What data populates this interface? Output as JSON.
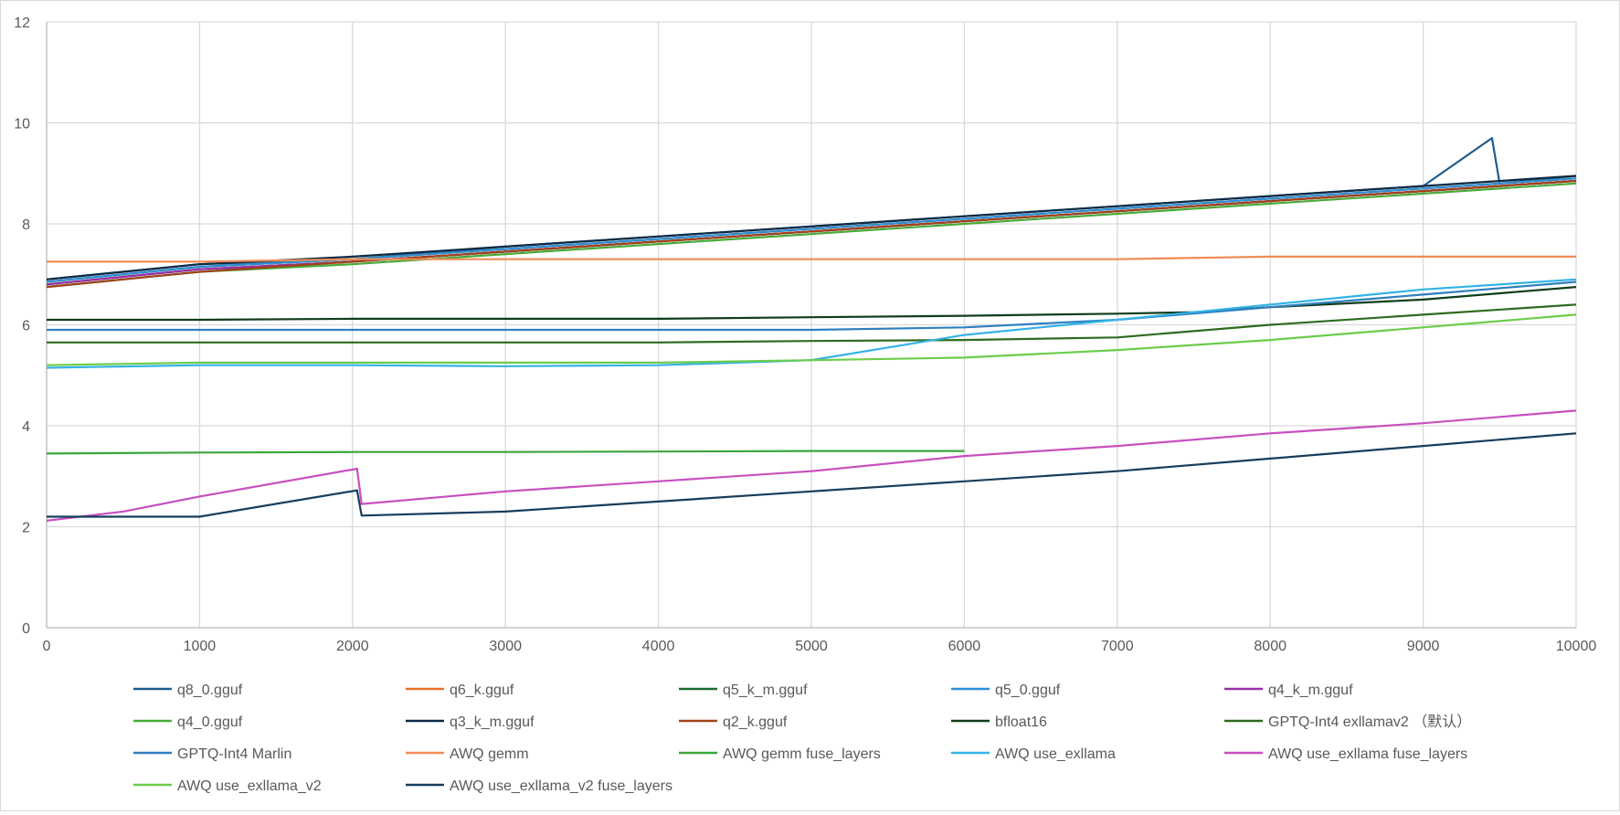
{
  "chart_data": {
    "type": "line",
    "title": "",
    "xlabel": "",
    "ylabel": "",
    "xlim": [
      0,
      10000
    ],
    "ylim": [
      0,
      12
    ],
    "x_ticks": [
      0,
      1000,
      2000,
      3000,
      4000,
      5000,
      6000,
      7000,
      8000,
      9000,
      10000
    ],
    "y_ticks": [
      0,
      2,
      4,
      6,
      8,
      10,
      12
    ],
    "grid": true,
    "legend_position": "bottom",
    "series": [
      {
        "name": "q8_0.gguf",
        "color": "#1f5c8c",
        "values": [
          [
            0,
            6.9
          ],
          [
            500,
            7.05
          ],
          [
            1000,
            7.2
          ],
          [
            2000,
            7.3
          ],
          [
            3000,
            7.55
          ],
          [
            4000,
            7.75
          ],
          [
            5000,
            7.95
          ],
          [
            6000,
            8.15
          ],
          [
            7000,
            8.35
          ],
          [
            8000,
            8.55
          ],
          [
            9000,
            8.75
          ],
          [
            9450,
            9.7
          ],
          [
            9500,
            8.8
          ],
          [
            10000,
            8.95
          ]
        ]
      },
      {
        "name": "q6_k.gguf",
        "color": "#e8702a",
        "values": [
          [
            0,
            6.85
          ],
          [
            1000,
            7.15
          ],
          [
            2000,
            7.3
          ],
          [
            3000,
            7.5
          ],
          [
            4000,
            7.7
          ],
          [
            5000,
            7.9
          ],
          [
            6000,
            8.1
          ],
          [
            7000,
            8.3
          ],
          [
            8000,
            8.5
          ],
          [
            9000,
            8.7
          ],
          [
            10000,
            8.9
          ]
        ]
      },
      {
        "name": "q5_k_m.gguf",
        "color": "#1a6b2e",
        "values": [
          [
            0,
            6.8
          ],
          [
            1000,
            7.1
          ],
          [
            2000,
            7.25
          ],
          [
            3000,
            7.45
          ],
          [
            4000,
            7.65
          ],
          [
            5000,
            7.85
          ],
          [
            6000,
            8.05
          ],
          [
            7000,
            8.25
          ],
          [
            8000,
            8.45
          ],
          [
            9000,
            8.65
          ],
          [
            10000,
            8.85
          ]
        ]
      },
      {
        "name": "q5_0.gguf",
        "color": "#2b8fd6",
        "values": [
          [
            0,
            6.85
          ],
          [
            1000,
            7.15
          ],
          [
            2000,
            7.3
          ],
          [
            3000,
            7.5
          ],
          [
            4000,
            7.7
          ],
          [
            5000,
            7.9
          ],
          [
            6000,
            8.1
          ],
          [
            7000,
            8.3
          ],
          [
            8000,
            8.5
          ],
          [
            9000,
            8.7
          ],
          [
            10000,
            8.9
          ]
        ]
      },
      {
        "name": "q4_k_m.gguf",
        "color": "#9b2fa6",
        "values": [
          [
            0,
            6.8
          ],
          [
            1000,
            7.1
          ],
          [
            2000,
            7.25
          ],
          [
            3000,
            7.45
          ],
          [
            4000,
            7.65
          ],
          [
            5000,
            7.85
          ],
          [
            6000,
            8.05
          ],
          [
            7000,
            8.25
          ],
          [
            8000,
            8.45
          ],
          [
            9000,
            8.65
          ],
          [
            10000,
            8.85
          ]
        ]
      },
      {
        "name": "q4_0.gguf",
        "color": "#4aaa3a",
        "values": [
          [
            0,
            6.75
          ],
          [
            1000,
            7.05
          ],
          [
            2000,
            7.2
          ],
          [
            3000,
            7.4
          ],
          [
            4000,
            7.6
          ],
          [
            5000,
            7.8
          ],
          [
            6000,
            8.0
          ],
          [
            7000,
            8.2
          ],
          [
            8000,
            8.4
          ],
          [
            9000,
            8.6
          ],
          [
            10000,
            8.8
          ]
        ]
      },
      {
        "name": "q3_k_m.gguf",
        "color": "#0d2a45",
        "values": [
          [
            0,
            6.9
          ],
          [
            1000,
            7.2
          ],
          [
            2000,
            7.35
          ],
          [
            3000,
            7.55
          ],
          [
            4000,
            7.75
          ],
          [
            5000,
            7.95
          ],
          [
            6000,
            8.15
          ],
          [
            7000,
            8.35
          ],
          [
            8000,
            8.55
          ],
          [
            9000,
            8.75
          ],
          [
            10000,
            8.95
          ]
        ]
      },
      {
        "name": "q2_k.gguf",
        "color": "#a0421a",
        "values": [
          [
            0,
            6.75
          ],
          [
            1000,
            7.05
          ],
          [
            2000,
            7.25
          ],
          [
            3000,
            7.45
          ],
          [
            4000,
            7.65
          ],
          [
            5000,
            7.85
          ],
          [
            6000,
            8.05
          ],
          [
            7000,
            8.25
          ],
          [
            8000,
            8.45
          ],
          [
            9000,
            8.65
          ],
          [
            10000,
            8.85
          ]
        ]
      },
      {
        "name": "bfloat16",
        "color": "#0f3d1a",
        "values": [
          [
            0,
            6.1
          ],
          [
            1000,
            6.1
          ],
          [
            2000,
            6.12
          ],
          [
            3000,
            6.12
          ],
          [
            4000,
            6.12
          ],
          [
            5000,
            6.15
          ],
          [
            6000,
            6.18
          ],
          [
            7000,
            6.22
          ],
          [
            7500,
            6.25
          ],
          [
            8000,
            6.35
          ],
          [
            9000,
            6.5
          ],
          [
            10000,
            6.75
          ]
        ]
      },
      {
        "name": "GPTQ-Int4 exllamav2 （默认）",
        "color": "#2e6b1f",
        "values": [
          [
            0,
            5.65
          ],
          [
            1000,
            5.65
          ],
          [
            2000,
            5.65
          ],
          [
            3000,
            5.65
          ],
          [
            4000,
            5.65
          ],
          [
            5000,
            5.68
          ],
          [
            6000,
            5.7
          ],
          [
            7000,
            5.75
          ],
          [
            8000,
            6.0
          ],
          [
            9000,
            6.2
          ],
          [
            10000,
            6.4
          ]
        ]
      },
      {
        "name": "GPTQ-Int4 Marlin",
        "color": "#2f7fbf",
        "values": [
          [
            0,
            5.9
          ],
          [
            1000,
            5.9
          ],
          [
            2000,
            5.9
          ],
          [
            3000,
            5.9
          ],
          [
            4000,
            5.9
          ],
          [
            5000,
            5.9
          ],
          [
            6000,
            5.95
          ],
          [
            7000,
            6.1
          ],
          [
            8000,
            6.35
          ],
          [
            9000,
            6.6
          ],
          [
            10000,
            6.85
          ]
        ]
      },
      {
        "name": "AWQ gemm",
        "color": "#f08c55",
        "values": [
          [
            0,
            7.25
          ],
          [
            1000,
            7.25
          ],
          [
            2000,
            7.3
          ],
          [
            3000,
            7.3
          ],
          [
            4000,
            7.3
          ],
          [
            5000,
            7.3
          ],
          [
            6000,
            7.3
          ],
          [
            7000,
            7.3
          ],
          [
            8000,
            7.35
          ],
          [
            9000,
            7.35
          ],
          [
            10000,
            7.35
          ]
        ]
      },
      {
        "name": "AWQ gemm fuse_layers",
        "color": "#3aa63a",
        "values": [
          [
            0,
            3.45
          ],
          [
            1000,
            3.47
          ],
          [
            2000,
            3.48
          ],
          [
            3000,
            3.48
          ],
          [
            4000,
            3.49
          ],
          [
            5000,
            3.5
          ],
          [
            6000,
            3.5
          ]
        ]
      },
      {
        "name": "AWQ use_exllama",
        "color": "#33b3e6",
        "values": [
          [
            0,
            5.15
          ],
          [
            1000,
            5.2
          ],
          [
            2000,
            5.2
          ],
          [
            3000,
            5.18
          ],
          [
            4000,
            5.2
          ],
          [
            5000,
            5.3
          ],
          [
            6000,
            5.8
          ],
          [
            7000,
            6.1
          ],
          [
            8000,
            6.4
          ],
          [
            9000,
            6.7
          ],
          [
            10000,
            6.9
          ]
        ]
      },
      {
        "name": "AWQ use_exllama fuse_layers",
        "color": "#c84fc0",
        "values": [
          [
            0,
            2.12
          ],
          [
            500,
            2.3
          ],
          [
            1000,
            2.6
          ],
          [
            2030,
            3.15
          ],
          [
            2060,
            2.45
          ],
          [
            3000,
            2.7
          ],
          [
            4000,
            2.9
          ],
          [
            5000,
            3.1
          ],
          [
            6000,
            3.4
          ],
          [
            7000,
            3.6
          ],
          [
            8000,
            3.85
          ],
          [
            9000,
            4.05
          ],
          [
            10000,
            4.3
          ]
        ]
      },
      {
        "name": "AWQ use_exllama_v2",
        "color": "#6ccc4a",
        "values": [
          [
            0,
            5.2
          ],
          [
            1000,
            5.25
          ],
          [
            2000,
            5.25
          ],
          [
            3000,
            5.25
          ],
          [
            4000,
            5.25
          ],
          [
            5000,
            5.3
          ],
          [
            6000,
            5.35
          ],
          [
            7000,
            5.5
          ],
          [
            8000,
            5.7
          ],
          [
            9000,
            5.95
          ],
          [
            10000,
            6.2
          ]
        ]
      },
      {
        "name": "AWQ use_exllama_v2 fuse_layers",
        "color": "#173d5c",
        "values": [
          [
            0,
            2.2
          ],
          [
            1000,
            2.2
          ],
          [
            1100,
            2.25
          ],
          [
            2030,
            2.72
          ],
          [
            2060,
            2.22
          ],
          [
            3000,
            2.3
          ],
          [
            4000,
            2.5
          ],
          [
            5000,
            2.7
          ],
          [
            6000,
            2.9
          ],
          [
            7000,
            3.1
          ],
          [
            8000,
            3.35
          ],
          [
            9000,
            3.6
          ],
          [
            10000,
            3.85
          ]
        ]
      }
    ]
  }
}
